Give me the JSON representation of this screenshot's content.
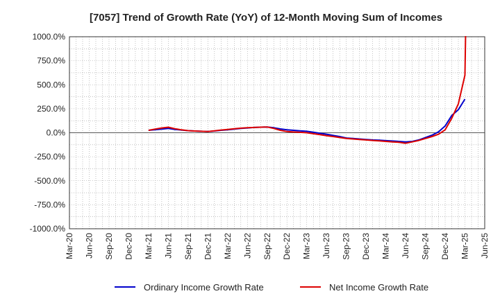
{
  "chart_data": {
    "type": "line",
    "title": "[7057]  Trend of Growth Rate (YoY) of 12-Month Moving Sum of Incomes",
    "xlabel": "",
    "ylabel": "",
    "y_unit": "%",
    "ylim": [
      -1000,
      1000
    ],
    "y_ticks": [
      "1000.0%",
      "750.0%",
      "500.0%",
      "250.0%",
      "0.0%",
      "-250.0%",
      "-500.0%",
      "-750.0%",
      "-1000.0%"
    ],
    "y_tick_values": [
      1000,
      750,
      500,
      250,
      0,
      -250,
      -500,
      -750,
      -1000
    ],
    "x_ticks": [
      "Mar-20",
      "Jun-20",
      "Sep-20",
      "Dec-20",
      "Mar-21",
      "Jun-21",
      "Sep-21",
      "Dec-21",
      "Mar-22",
      "Jun-22",
      "Sep-22",
      "Dec-22",
      "Mar-23",
      "Jun-23",
      "Sep-23",
      "Dec-23",
      "Mar-24",
      "Jun-24",
      "Sep-24",
      "Dec-24",
      "Mar-25",
      "Jun-25"
    ],
    "grid": true,
    "legend_position": "bottom",
    "series": [
      {
        "name": "Ordinary Income Growth Rate",
        "color": "#0000cc",
        "x": [
          "Mar-21",
          "Apr-21",
          "May-21",
          "Jun-21",
          "Jul-21",
          "Aug-21",
          "Sep-21",
          "Oct-21",
          "Nov-21",
          "Dec-21",
          "Jan-22",
          "Feb-22",
          "Mar-22",
          "Apr-22",
          "May-22",
          "Jun-22",
          "Jul-22",
          "Aug-22",
          "Sep-22",
          "Oct-22",
          "Nov-22",
          "Dec-22",
          "Jan-23",
          "Feb-23",
          "Mar-23",
          "Apr-23",
          "May-23",
          "Jun-23",
          "Jul-23",
          "Aug-23",
          "Sep-23",
          "Oct-23",
          "Nov-23",
          "Dec-23",
          "Jan-24",
          "Feb-24",
          "Mar-24",
          "Apr-24",
          "May-24",
          "Jun-24",
          "Jul-24",
          "Aug-24",
          "Sep-24",
          "Oct-24",
          "Nov-24",
          "Dec-24",
          "Jan-25",
          "Feb-25",
          "Mar-25"
        ],
        "values": [
          25,
          32,
          38,
          45,
          35,
          28,
          22,
          18,
          15,
          12,
          18,
          25,
          30,
          38,
          45,
          50,
          55,
          58,
          60,
          52,
          40,
          30,
          25,
          20,
          15,
          5,
          -5,
          -15,
          -28,
          -40,
          -55,
          -60,
          -65,
          -70,
          -75,
          -78,
          -82,
          -86,
          -90,
          -95,
          -90,
          -75,
          -50,
          -25,
          10,
          70,
          180,
          240,
          350
        ]
      },
      {
        "name": "Net Income Growth Rate",
        "color": "#dd0000",
        "x": [
          "Mar-21",
          "Apr-21",
          "May-21",
          "Jun-21",
          "Jul-21",
          "Aug-21",
          "Sep-21",
          "Oct-21",
          "Nov-21",
          "Dec-21",
          "Jan-22",
          "Feb-22",
          "Mar-22",
          "Apr-22",
          "May-22",
          "Jun-22",
          "Jul-22",
          "Aug-22",
          "Sep-22",
          "Oct-22",
          "Nov-22",
          "Dec-22",
          "Jan-23",
          "Feb-23",
          "Mar-23",
          "Apr-23",
          "May-23",
          "Jun-23",
          "Jul-23",
          "Aug-23",
          "Sep-23",
          "Oct-23",
          "Nov-23",
          "Dec-23",
          "Jan-24",
          "Feb-24",
          "Mar-24",
          "Apr-24",
          "May-24",
          "Jun-24",
          "Jul-24",
          "Aug-24",
          "Sep-24",
          "Oct-24",
          "Nov-24",
          "Dec-24",
          "Jan-25",
          "Feb-25",
          "Mar-25"
        ],
        "values": [
          25,
          38,
          50,
          58,
          42,
          30,
          22,
          18,
          15,
          12,
          20,
          28,
          35,
          42,
          48,
          52,
          55,
          58,
          60,
          45,
          25,
          12,
          8,
          4,
          0,
          -10,
          -20,
          -30,
          -40,
          -50,
          -60,
          -65,
          -70,
          -75,
          -80,
          -85,
          -90,
          -95,
          -100,
          -110,
          -95,
          -80,
          -60,
          -40,
          -15,
          30,
          150,
          300,
          600
        ]
      }
    ]
  }
}
